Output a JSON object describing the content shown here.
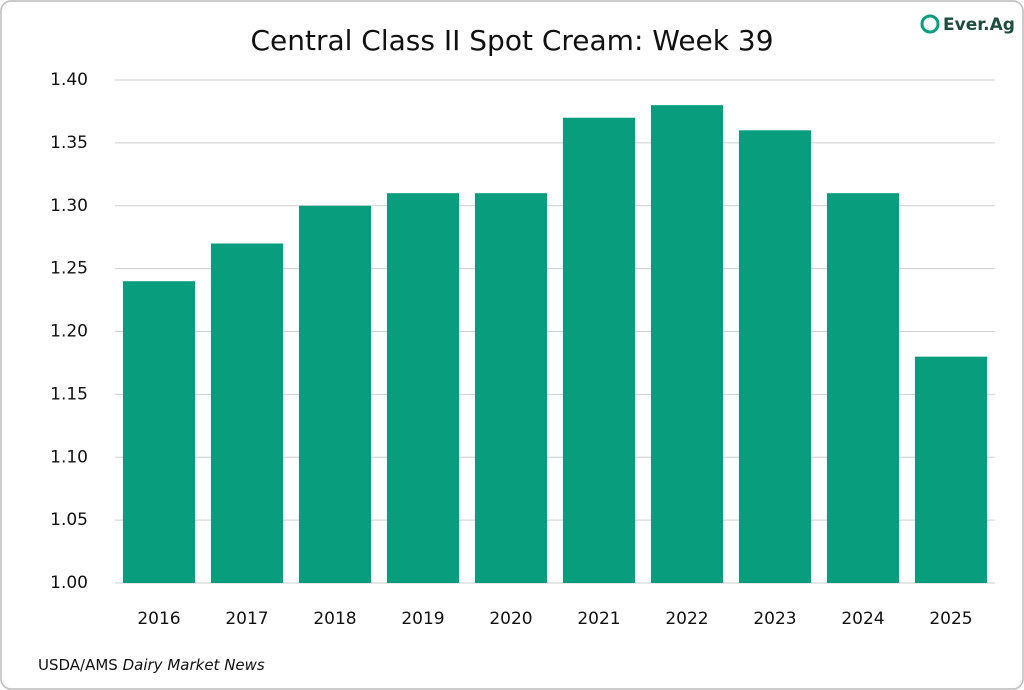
{
  "chart_data": {
    "type": "bar",
    "title": "Central Class II Spot Cream: Week 39",
    "categories": [
      "2016",
      "2017",
      "2018",
      "2019",
      "2020",
      "2021",
      "2022",
      "2023",
      "2024",
      "2025"
    ],
    "values": [
      1.24,
      1.27,
      1.3,
      1.31,
      1.31,
      1.37,
      1.38,
      1.36,
      1.31,
      1.18
    ],
    "color": "#089e7d",
    "ylim": [
      1.0,
      1.4
    ],
    "yticks": [
      {
        "value": 1.0,
        "label": "1.00"
      },
      1.05,
      {
        "value": 1.1,
        "label": "1.10"
      },
      1.15,
      {
        "value": 1.2,
        "label": "1.20"
      },
      1.25,
      {
        "value": 1.3,
        "label": "1.30"
      },
      1.35,
      {
        "value": 1.4,
        "label": "1.40"
      }
    ],
    "grid": true,
    "source_prefix": "USDA/AMS",
    "source_italic": "Dairy Market News",
    "logo": "Ever.Ag"
  }
}
